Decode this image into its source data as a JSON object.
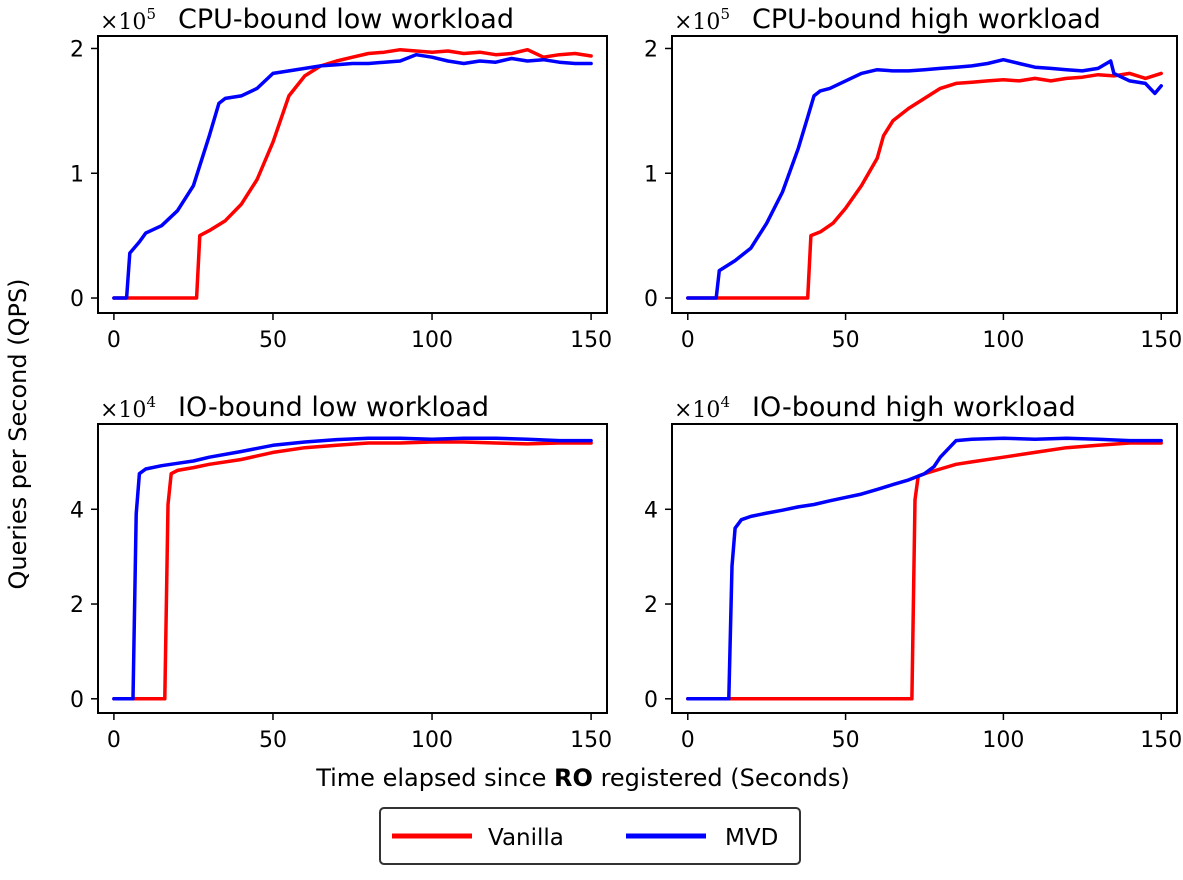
{
  "figure": {
    "ylabel": "Queries per Second (QPS)",
    "xlabel_parts": [
      "Time elapsed since ",
      "RO",
      " registered (Seconds)"
    ]
  },
  "legend": [
    {
      "name": "Vanilla",
      "color": "#ff0000"
    },
    {
      "name": "MVD",
      "color": "#0000ff"
    }
  ],
  "chart_data": [
    {
      "type": "line",
      "title": "CPU-bound low workload",
      "multiplier": "×10",
      "multiplier_exp": "5",
      "xlim": [
        -5,
        155
      ],
      "ylim": [
        -0.12,
        2.1
      ],
      "xticks": [
        0,
        50,
        100,
        150
      ],
      "xtick_labels": [
        "0",
        "50",
        "100",
        "150"
      ],
      "yticks": [
        0,
        1,
        2
      ],
      "ytick_labels": [
        "0",
        "1",
        "2"
      ],
      "series": [
        {
          "name": "Vanilla",
          "color": "#ff0000",
          "x": [
            0,
            5,
            10,
            20,
            26,
            27,
            30,
            35,
            40,
            45,
            50,
            55,
            60,
            65,
            70,
            75,
            80,
            85,
            90,
            95,
            100,
            105,
            110,
            115,
            120,
            125,
            130,
            135,
            140,
            145,
            150
          ],
          "y": [
            0,
            0,
            0,
            0,
            0,
            0.5,
            0.54,
            0.62,
            0.75,
            0.95,
            1.25,
            1.62,
            1.78,
            1.86,
            1.9,
            1.93,
            1.96,
            1.97,
            1.99,
            1.98,
            1.97,
            1.98,
            1.96,
            1.97,
            1.95,
            1.96,
            1.99,
            1.93,
            1.95,
            1.96,
            1.94
          ]
        },
        {
          "name": "MVD",
          "color": "#0000ff",
          "x": [
            0,
            4,
            5,
            8,
            10,
            15,
            20,
            25,
            30,
            33,
            35,
            40,
            45,
            50,
            55,
            60,
            65,
            70,
            75,
            80,
            85,
            90,
            95,
            100,
            105,
            110,
            115,
            120,
            125,
            130,
            135,
            140,
            145,
            150
          ],
          "y": [
            0,
            0,
            0.36,
            0.45,
            0.52,
            0.58,
            0.7,
            0.9,
            1.3,
            1.56,
            1.6,
            1.62,
            1.68,
            1.8,
            1.82,
            1.84,
            1.86,
            1.87,
            1.88,
            1.88,
            1.89,
            1.9,
            1.95,
            1.93,
            1.9,
            1.88,
            1.9,
            1.89,
            1.92,
            1.9,
            1.91,
            1.89,
            1.88,
            1.88
          ]
        }
      ]
    },
    {
      "type": "line",
      "title": "CPU-bound high workload",
      "multiplier": "×10",
      "multiplier_exp": "5",
      "xlim": [
        -5,
        155
      ],
      "ylim": [
        -0.12,
        2.1
      ],
      "xticks": [
        0,
        50,
        100,
        150
      ],
      "xtick_labels": [
        "0",
        "50",
        "100",
        "150"
      ],
      "yticks": [
        0,
        1,
        2
      ],
      "ytick_labels": [
        "0",
        "1",
        "2"
      ],
      "series": [
        {
          "name": "Vanilla",
          "color": "#ff0000",
          "x": [
            0,
            5,
            10,
            20,
            30,
            38,
            39,
            42,
            46,
            50,
            55,
            60,
            62,
            65,
            70,
            75,
            80,
            85,
            90,
            95,
            100,
            105,
            110,
            115,
            120,
            125,
            130,
            135,
            140,
            145,
            150
          ],
          "y": [
            0,
            0,
            0,
            0,
            0,
            0,
            0.5,
            0.53,
            0.6,
            0.72,
            0.9,
            1.12,
            1.3,
            1.42,
            1.52,
            1.6,
            1.68,
            1.72,
            1.73,
            1.74,
            1.75,
            1.74,
            1.76,
            1.74,
            1.76,
            1.77,
            1.79,
            1.78,
            1.8,
            1.76,
            1.8
          ]
        },
        {
          "name": "MVD",
          "color": "#0000ff",
          "x": [
            0,
            5,
            9,
            10,
            15,
            20,
            25,
            30,
            35,
            38,
            40,
            42,
            45,
            50,
            55,
            60,
            65,
            70,
            75,
            80,
            85,
            90,
            95,
            100,
            105,
            110,
            115,
            120,
            125,
            130,
            134,
            135,
            140,
            145,
            148,
            150
          ],
          "y": [
            0,
            0,
            0,
            0.22,
            0.3,
            0.4,
            0.6,
            0.85,
            1.2,
            1.45,
            1.62,
            1.66,
            1.68,
            1.74,
            1.8,
            1.83,
            1.82,
            1.82,
            1.83,
            1.84,
            1.85,
            1.86,
            1.88,
            1.91,
            1.88,
            1.85,
            1.84,
            1.83,
            1.82,
            1.84,
            1.9,
            1.8,
            1.74,
            1.72,
            1.64,
            1.7
          ]
        }
      ]
    },
    {
      "type": "line",
      "title": "IO-bound low workload",
      "multiplier": "×10",
      "multiplier_exp": "4",
      "xlim": [
        -5,
        155
      ],
      "ylim": [
        -0.3,
        5.8
      ],
      "xticks": [
        0,
        50,
        100,
        150
      ],
      "xtick_labels": [
        "0",
        "50",
        "100",
        "150"
      ],
      "yticks": [
        0,
        2,
        4
      ],
      "ytick_labels": [
        "0",
        "2",
        "4"
      ],
      "series": [
        {
          "name": "Vanilla",
          "color": "#ff0000",
          "x": [
            0,
            5,
            10,
            15,
            16,
            17,
            18,
            20,
            25,
            30,
            40,
            50,
            60,
            70,
            80,
            90,
            100,
            110,
            120,
            130,
            140,
            150
          ],
          "y": [
            0,
            0,
            0,
            0,
            0,
            4.1,
            4.75,
            4.82,
            4.88,
            4.95,
            5.05,
            5.2,
            5.3,
            5.35,
            5.4,
            5.4,
            5.42,
            5.42,
            5.4,
            5.38,
            5.4,
            5.4
          ]
        },
        {
          "name": "MVD",
          "color": "#0000ff",
          "x": [
            0,
            5,
            6,
            7,
            8,
            10,
            15,
            20,
            25,
            30,
            40,
            50,
            60,
            70,
            80,
            90,
            100,
            110,
            120,
            130,
            140,
            150
          ],
          "y": [
            0,
            0,
            0,
            3.9,
            4.75,
            4.85,
            4.92,
            4.97,
            5.02,
            5.1,
            5.22,
            5.35,
            5.42,
            5.47,
            5.5,
            5.5,
            5.48,
            5.5,
            5.5,
            5.48,
            5.45,
            5.45
          ]
        }
      ]
    },
    {
      "type": "line",
      "title": "IO-bound high workload",
      "multiplier": "×10",
      "multiplier_exp": "4",
      "xlim": [
        -5,
        155
      ],
      "ylim": [
        -0.3,
        5.8
      ],
      "xticks": [
        0,
        50,
        100,
        150
      ],
      "xtick_labels": [
        "0",
        "50",
        "100",
        "150"
      ],
      "yticks": [
        0,
        2,
        4
      ],
      "ytick_labels": [
        "0",
        "2",
        "4"
      ],
      "series": [
        {
          "name": "Vanilla",
          "color": "#ff0000",
          "x": [
            0,
            10,
            20,
            30,
            40,
            50,
            60,
            70,
            71,
            72,
            73,
            75,
            80,
            85,
            90,
            100,
            110,
            120,
            130,
            140,
            150
          ],
          "y": [
            0,
            0,
            0,
            0,
            0,
            0,
            0,
            0,
            0,
            4.2,
            4.7,
            4.75,
            4.85,
            4.95,
            5.0,
            5.1,
            5.2,
            5.3,
            5.35,
            5.4,
            5.4
          ]
        },
        {
          "name": "MVD",
          "color": "#0000ff",
          "x": [
            0,
            5,
            10,
            12,
            13,
            14,
            15,
            17,
            20,
            25,
            30,
            35,
            40,
            45,
            50,
            55,
            60,
            65,
            70,
            75,
            78,
            80,
            85,
            90,
            100,
            110,
            120,
            130,
            140,
            150
          ],
          "y": [
            0,
            0,
            0,
            0,
            0,
            2.8,
            3.6,
            3.78,
            3.85,
            3.92,
            3.98,
            4.05,
            4.1,
            4.18,
            4.25,
            4.32,
            4.42,
            4.52,
            4.62,
            4.75,
            4.9,
            5.1,
            5.45,
            5.48,
            5.5,
            5.48,
            5.5,
            5.48,
            5.45,
            5.45
          ]
        }
      ]
    }
  ]
}
